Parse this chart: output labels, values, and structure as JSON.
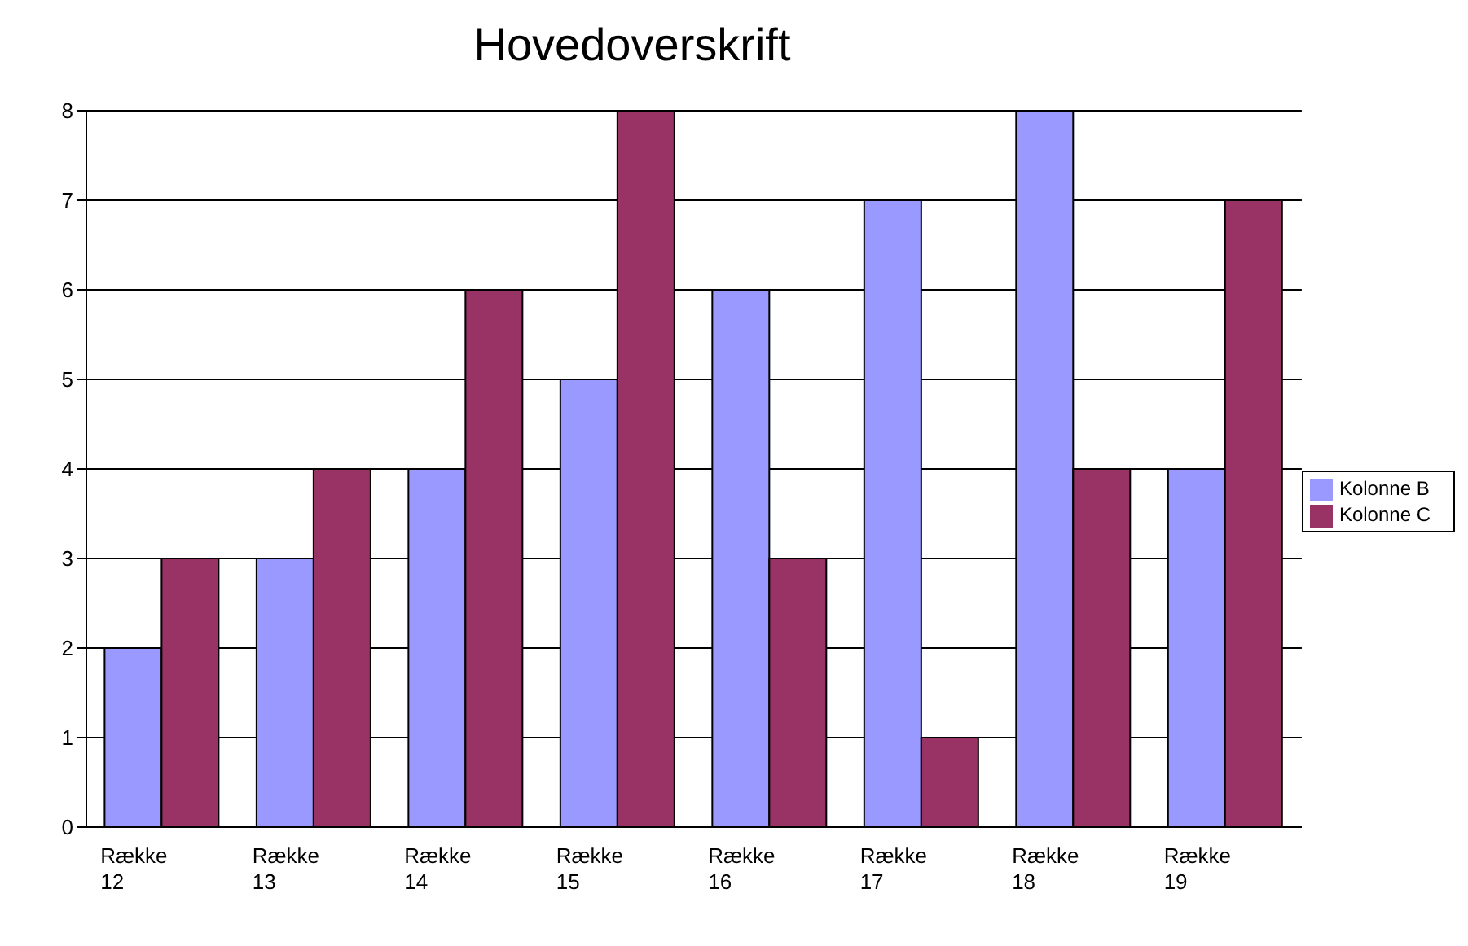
{
  "chart_data": {
    "type": "bar",
    "title": "Hovedoverskrift",
    "categories": [
      "Række 12",
      "Række 13",
      "Række 14",
      "Række 15",
      "Række 16",
      "Række 17",
      "Række 18",
      "Række 19"
    ],
    "series": [
      {
        "name": "Kolonne B",
        "color": "#9999ff",
        "values": [
          2,
          3,
          4,
          5,
          6,
          7,
          8,
          4
        ]
      },
      {
        "name": "Kolonne C",
        "color": "#993366",
        "values": [
          3,
          4,
          6,
          8,
          3,
          1,
          4,
          7
        ]
      }
    ],
    "ylim": [
      0,
      8
    ],
    "yticks": [
      0,
      1,
      2,
      3,
      4,
      5,
      6,
      7,
      8
    ],
    "grid": "y",
    "legend": "right"
  }
}
